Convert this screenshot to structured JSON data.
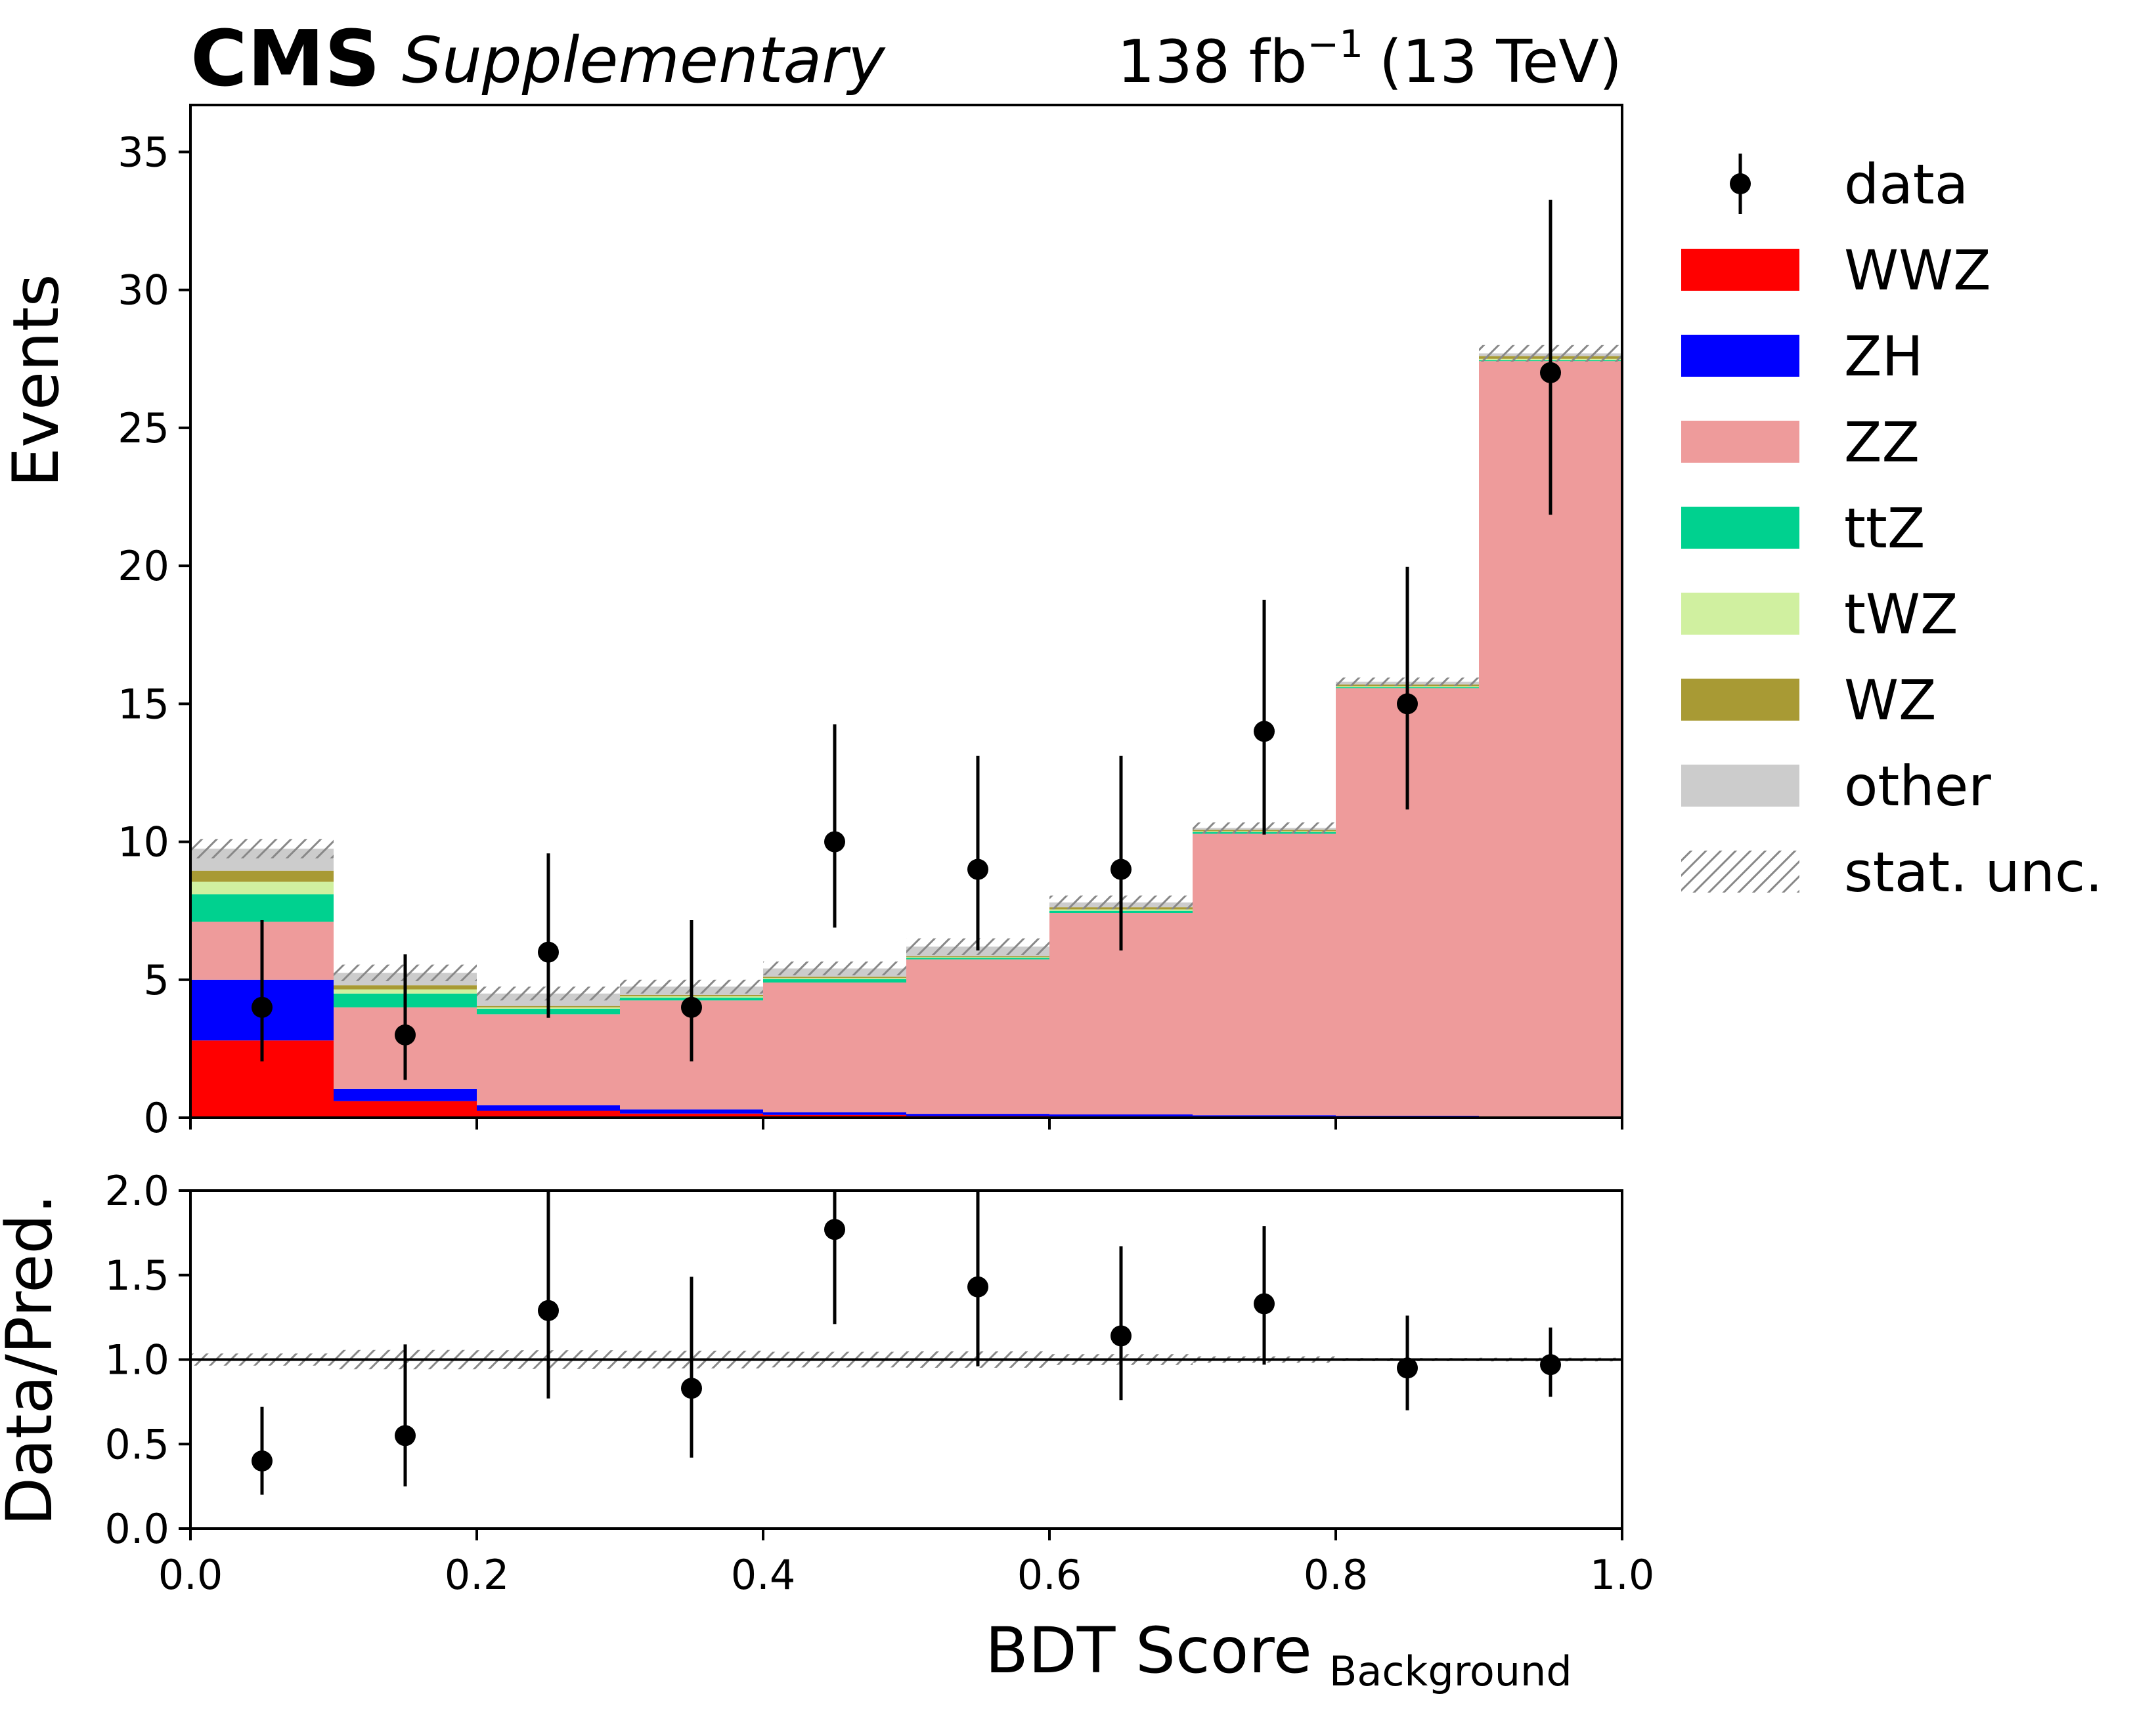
{
  "header": {
    "experiment": "CMS",
    "label": "Supplementary",
    "lumi_prefix": "138 fb",
    "lumi_exponent": "−1",
    "lumi_suffix": "(13 TeV)"
  },
  "chart_data": {
    "type": "bar",
    "subtype": "stacked-histogram-with-ratio",
    "bin_edges": [
      0.0,
      0.1,
      0.2,
      0.3,
      0.4,
      0.5,
      0.6,
      0.7,
      0.8,
      0.9,
      1.0
    ],
    "xlabel": "BDT Score",
    "xlabel_subscript": "Background",
    "xlim": [
      0.0,
      1.0
    ],
    "xticks": [
      0.0,
      0.2,
      0.4,
      0.6,
      0.8,
      1.0
    ],
    "xtick_labels": [
      "0.0",
      "0.2",
      "0.4",
      "0.6",
      "0.8",
      "1.0"
    ],
    "top": {
      "ylabel": "Events",
      "ylim": [
        0,
        36.7
      ],
      "yticks": [
        0,
        5,
        10,
        15,
        20,
        25,
        30,
        35
      ],
      "ytick_labels": [
        "0",
        "5",
        "10",
        "15",
        "20",
        "25",
        "30",
        "35"
      ],
      "stack": [
        {
          "name": "WWZ",
          "color": "#ff0000",
          "values": [
            2.8,
            0.6,
            0.25,
            0.15,
            0.1,
            0.06,
            0.05,
            0.03,
            0.02,
            0.0
          ]
        },
        {
          "name": "ZH",
          "color": "#0000ff",
          "values": [
            2.2,
            0.45,
            0.2,
            0.15,
            0.1,
            0.08,
            0.07,
            0.06,
            0.05,
            0.02
          ]
        },
        {
          "name": "ZZ",
          "color": "#ee9b9b",
          "values": [
            2.1,
            2.95,
            3.3,
            3.95,
            4.7,
            5.6,
            7.3,
            10.2,
            15.5,
            27.4
          ]
        },
        {
          "name": "ttZ",
          "color": "#00d18f",
          "values": [
            1.0,
            0.5,
            0.2,
            0.1,
            0.12,
            0.05,
            0.08,
            0.06,
            0.03,
            0.03
          ]
        },
        {
          "name": "tWZ",
          "color": "#d0f0a0",
          "values": [
            0.45,
            0.15,
            0.05,
            0.05,
            0.04,
            0.03,
            0.05,
            0.03,
            0.04,
            0.05
          ]
        },
        {
          "name": "WZ",
          "color": "#a89a34",
          "values": [
            0.4,
            0.15,
            0.05,
            0.05,
            0.05,
            0.03,
            0.08,
            0.05,
            0.06,
            0.1
          ]
        },
        {
          "name": "other",
          "color": "#cccccc",
          "values": [
            0.8,
            0.45,
            0.45,
            0.3,
            0.3,
            0.35,
            0.17,
            0.07,
            0.1,
            0.1
          ]
        }
      ],
      "stat_unc": [
        0.35,
        0.3,
        0.25,
        0.25,
        0.25,
        0.3,
        0.25,
        0.2,
        0.15,
        0.3
      ],
      "data": {
        "name": "data",
        "values": [
          4,
          3,
          6,
          4,
          10,
          9,
          9,
          14,
          15,
          27
        ],
        "err_low": [
          1.96,
          1.63,
          2.38,
          1.96,
          3.11,
          2.94,
          2.94,
          3.74,
          3.83,
          5.15
        ],
        "err_high": [
          3.16,
          2.92,
          3.58,
          3.16,
          4.26,
          4.11,
          4.11,
          4.77,
          4.96,
          6.26
        ]
      }
    },
    "ratio": {
      "ylabel": "Data/Pred.",
      "ylim": [
        0.0,
        2.0
      ],
      "yticks": [
        0.0,
        0.5,
        1.0,
        1.5,
        2.0
      ],
      "ytick_labels": [
        "0.0",
        "0.5",
        "1.0",
        "1.5",
        "2.0"
      ],
      "reference_line": 1.0,
      "values": [
        0.4,
        0.55,
        1.29,
        0.83,
        1.77,
        1.43,
        1.14,
        1.33,
        0.95,
        0.97
      ],
      "err_low": [
        0.2,
        0.3,
        0.52,
        0.41,
        0.56,
        0.47,
        0.38,
        0.36,
        0.25,
        0.19
      ],
      "err_high": [
        0.32,
        0.54,
        0.77,
        0.66,
        0.76,
        0.66,
        0.53,
        0.46,
        0.31,
        0.22
      ]
    },
    "legend": {
      "placement": "right of plot",
      "entries": [
        "data",
        "WWZ",
        "ZH",
        "ZZ",
        "ttZ",
        "tWZ",
        "WZ",
        "other",
        "stat. unc."
      ]
    }
  }
}
